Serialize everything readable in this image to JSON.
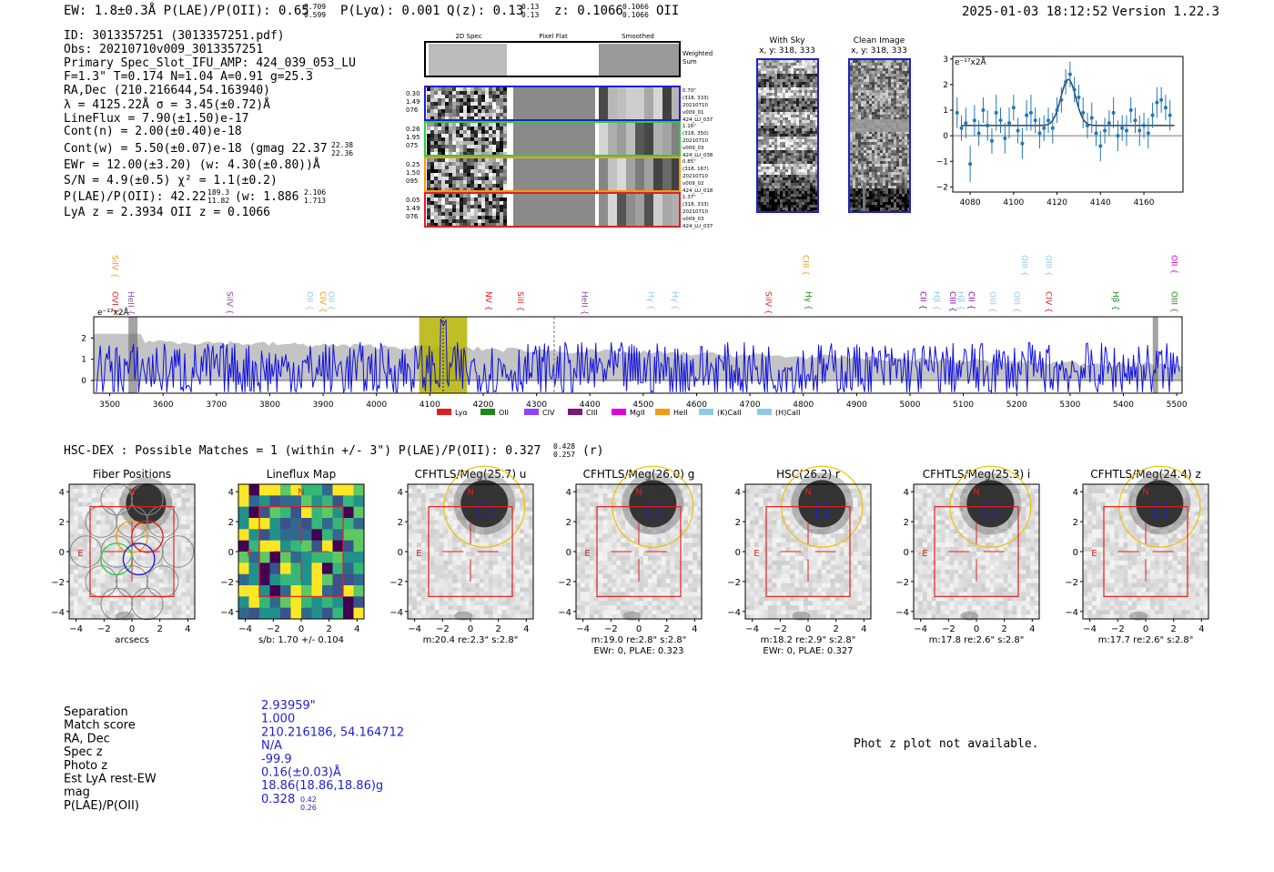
{
  "header": {
    "ew_line": "EW: 1.8±0.3Å  P(LAE)/P(OII): 0.65",
    "pr_hi": "0.709",
    "pr_lo": "0.599",
    "plya": "P(Lyα): 0.001",
    "qz": "Q(z): 0.13",
    "qz_hi": "0.13",
    "qz_lo": "0.13",
    "z": "z: 0.1066",
    "z_hi": "0.1066",
    "z_lo": "0.1066",
    "z_type": "OII",
    "timestamp": "2025-01-03 18:12:52",
    "version": "Version 1.22.3"
  },
  "info": {
    "id": "ID: 3013357251 (3013357251.pdf)",
    "obs": "Obs: 20210710v009_3013357251",
    "primary": "Primary Spec_Slot_IFU_AMP: 424_039_053_LU",
    "fiber": "F=1.3\"  T=0.174  N=1.04  A=0.91  g=25.3",
    "radec": "RA,Dec (210.216644,54.163940)",
    "lambda": "λ = 4125.22Å  σ = 3.45(±0.72)Å",
    "lineflux": "LineFlux = 7.90(±1.50)e-17",
    "contn": "Cont(n) = 2.00(±0.40)e-18",
    "contw": "Cont(w) = 5.50(±0.07)e-18 (gmag 22.37",
    "gmag_hi": "22.38",
    "gmag_lo": "22.36",
    "ewr": "EWr = 12.00(±3.20) (w: 4.30(±0.80))Å",
    "sn": "S/N = 4.9(±0.5)  χ² = 1.1(±0.2)",
    "plae": "P(LAE)/P(OII): 42.22",
    "plae_hi": "189.3",
    "plae_lo": "11.82",
    "plae_w": "(w: 1.886",
    "plae_w_hi": "2.106",
    "plae_w_lo": "1.713",
    "lyaz": "LyA z = 2.3934  OII z = 0.1066"
  },
  "cutout_panel": {
    "col_2d": "2D Spec",
    "col_flat": "Pixel Flat",
    "col_smooth": "Smoothed",
    "weighted": "Weighted",
    "sum": "Sum",
    "rows": [
      {
        "a": "0.30",
        "b": "1.49",
        "c": "076",
        "r1": "0.70\"",
        "r2": "(318, 333)",
        "r3": "20210710",
        "r4": "v009_01",
        "r5": "424_LU_037",
        "color": "#1f1fd0"
      },
      {
        "a": "0.26",
        "b": "1.95",
        "c": "075",
        "r1": "1.16\"",
        "r2": "(318, 350)",
        "r3": "20210710",
        "r4": "v009_03",
        "r5": "424_LU_038",
        "color": "#2ecc40"
      },
      {
        "a": "0.25",
        "b": "1.50",
        "c": "095",
        "r1": "0.85\"",
        "r2": "(318, 167)",
        "r3": "20210710",
        "r4": "v009_02",
        "r5": "424_LU_018",
        "color": "#f39c12"
      },
      {
        "a": "0.05",
        "b": "1.49",
        "c": "076",
        "r1": "1.37\"",
        "r2": "(318, 333)",
        "r3": "20210710",
        "r4": "v009_03",
        "r5": "424_LU_037",
        "color": "#e02020"
      }
    ]
  },
  "sky": {
    "t1": "With Sky",
    "t2": "Clean Image",
    "c1": "x, y: 318, 333",
    "c2": "x, y: 318, 333"
  },
  "zoom_chart": {
    "type": "scatter",
    "units": "e⁻¹⁷x2Å",
    "xlim": [
      4072,
      4178
    ],
    "ylim": [
      -2.2,
      3.1
    ],
    "xticks": [
      "4080",
      "4100",
      "4120",
      "4140",
      "4160"
    ],
    "yticks": [
      "3",
      "2",
      "1",
      "0",
      "−1",
      "−2"
    ],
    "fit": {
      "base": 0.4,
      "amp": 1.8,
      "center": 4125.2,
      "sigma": 3.45
    },
    "points": [
      [
        4074,
        0.9,
        0.6
      ],
      [
        4076,
        0.3,
        0.5
      ],
      [
        4078,
        0.5,
        0.6
      ],
      [
        4080,
        -1.1,
        0.7
      ],
      [
        4082,
        0.6,
        0.6
      ],
      [
        4084,
        0.1,
        0.5
      ],
      [
        4086,
        1.0,
        0.5
      ],
      [
        4088,
        0.4,
        0.6
      ],
      [
        4090,
        -0.2,
        0.5
      ],
      [
        4092,
        0.9,
        0.7
      ],
      [
        4094,
        0.6,
        0.5
      ],
      [
        4096,
        -0.1,
        0.6
      ],
      [
        4098,
        0.5,
        0.6
      ],
      [
        4100,
        1.1,
        0.5
      ],
      [
        4102,
        0.2,
        0.5
      ],
      [
        4104,
        -0.3,
        0.6
      ],
      [
        4106,
        0.8,
        0.6
      ],
      [
        4108,
        0.9,
        0.7
      ],
      [
        4110,
        0.6,
        0.5
      ],
      [
        4112,
        0.1,
        0.6
      ],
      [
        4114,
        0.3,
        0.5
      ],
      [
        4116,
        0.6,
        0.5
      ],
      [
        4118,
        0.3,
        0.6
      ],
      [
        4120,
        1.0,
        0.5
      ],
      [
        4122,
        1.4,
        0.5
      ],
      [
        4124,
        2.1,
        0.5
      ],
      [
        4126,
        2.4,
        0.5
      ],
      [
        4128,
        1.8,
        0.5
      ],
      [
        4130,
        1.5,
        0.5
      ],
      [
        4132,
        0.9,
        0.6
      ],
      [
        4134,
        0.4,
        0.5
      ],
      [
        4136,
        0.7,
        0.6
      ],
      [
        4138,
        0.1,
        0.5
      ],
      [
        4140,
        -0.4,
        0.6
      ],
      [
        4142,
        0.2,
        0.5
      ],
      [
        4144,
        0.5,
        0.5
      ],
      [
        4146,
        0.9,
        0.6
      ],
      [
        4148,
        0.0,
        0.6
      ],
      [
        4150,
        0.3,
        0.5
      ],
      [
        4152,
        0.2,
        0.6
      ],
      [
        4154,
        1.0,
        0.5
      ],
      [
        4156,
        0.6,
        0.5
      ],
      [
        4158,
        0.2,
        0.6
      ],
      [
        4160,
        0.4,
        0.5
      ],
      [
        4162,
        0.1,
        0.6
      ],
      [
        4164,
        0.8,
        0.5
      ],
      [
        4166,
        1.3,
        0.6
      ],
      [
        4168,
        1.4,
        0.5
      ],
      [
        4170,
        1.1,
        0.5
      ],
      [
        4172,
        0.8,
        0.6
      ]
    ]
  },
  "full_spectrum": {
    "type": "line",
    "units": "e⁻¹⁷x2Å",
    "xlim": [
      3470,
      5510
    ],
    "ylim": [
      -0.6,
      3.0
    ],
    "xticks": [
      "3500",
      "3600",
      "3700",
      "3800",
      "3900",
      "4000",
      "4100",
      "4200",
      "4300",
      "4400",
      "4500",
      "4600",
      "4700",
      "4800",
      "4900",
      "5000",
      "5100",
      "5200",
      "5300",
      "5400",
      "5500"
    ],
    "yticks": [
      "2",
      "1",
      "0"
    ],
    "highlight": [
      4080,
      4170
    ],
    "line_labels": [
      {
        "wl": 3505,
        "t": "SiIV",
        "c": "#f39c12",
        "row": 0
      },
      {
        "wl": 3505,
        "t": "OVI",
        "c": "#e02020",
        "row": 1
      },
      {
        "wl": 3535,
        "t": "HeII",
        "c": "#8e44ad",
        "row": 1
      },
      {
        "wl": 3720,
        "t": "SiIV",
        "c": "#8e44ad",
        "row": 1
      },
      {
        "wl": 3870,
        "t": "OII",
        "c": "#8ecae6",
        "row": 1
      },
      {
        "wl": 3895,
        "t": "CIV",
        "c": "#f39c12",
        "row": 1
      },
      {
        "wl": 3910,
        "t": "OII",
        "c": "#8ecae6",
        "row": 1
      },
      {
        "wl": 4205,
        "t": "NV",
        "c": "#e02020",
        "row": 1
      },
      {
        "wl": 4265,
        "t": "SiII",
        "c": "#e02020",
        "row": 1
      },
      {
        "wl": 4385,
        "t": "HeII",
        "c": "#8e44ad",
        "row": 1
      },
      {
        "wl": 4510,
        "t": "Hγ",
        "c": "#8ecae6",
        "row": 1
      },
      {
        "wl": 4555,
        "t": "Hγ",
        "c": "#8ecae6",
        "row": 1
      },
      {
        "wl": 4730,
        "t": "SiIV",
        "c": "#e02020",
        "row": 1
      },
      {
        "wl": 4800,
        "t": "CIII",
        "c": "#f39c12",
        "row": 0
      },
      {
        "wl": 4805,
        "t": "Hγ",
        "c": "#1a8a1a",
        "row": 1
      },
      {
        "wl": 5020,
        "t": "CII",
        "c": "#8e00b0",
        "row": 1
      },
      {
        "wl": 5045,
        "t": "Hβ",
        "c": "#8ecae6",
        "row": 1
      },
      {
        "wl": 5075,
        "t": "CIII",
        "c": "#8e00b0",
        "row": 1
      },
      {
        "wl": 5090,
        "t": "Hβ",
        "c": "#8ecae6",
        "row": 1
      },
      {
        "wl": 5110,
        "t": "CII",
        "c": "#8e00b0",
        "row": 1
      },
      {
        "wl": 5150,
        "t": "OIII",
        "c": "#8ecae6",
        "row": 1
      },
      {
        "wl": 5195,
        "t": "OIII",
        "c": "#8ecae6",
        "row": 1
      },
      {
        "wl": 5210,
        "t": "OIII",
        "c": "#8ecae6",
        "row": 0
      },
      {
        "wl": 5255,
        "t": "OIII",
        "c": "#8ecae6",
        "row": 0
      },
      {
        "wl": 5255,
        "t": "CIV",
        "c": "#e02020",
        "row": 1
      },
      {
        "wl": 5380,
        "t": "Hβ",
        "c": "#1a8a1a",
        "row": 1
      },
      {
        "wl": 5490,
        "t": "OII",
        "c": "#e000e0",
        "row": 0
      },
      {
        "wl": 5490,
        "t": "OIII",
        "c": "#1a8a1a",
        "row": 1
      }
    ],
    "legend": [
      {
        "t": "Lyα",
        "c": "#e02020"
      },
      {
        "t": "OII",
        "c": "#1a8a1a"
      },
      {
        "t": "CIV",
        "c": "#8e44ff"
      },
      {
        "t": "CIII",
        "c": "#7a1a7a"
      },
      {
        "t": "MgII",
        "c": "#e000e0"
      },
      {
        "t": "HeII",
        "c": "#f39c12"
      },
      {
        "t": "(K)CaII",
        "c": "#8ecae6"
      },
      {
        "t": "(H)CaII",
        "c": "#8ecae6"
      }
    ]
  },
  "hsc": {
    "title_line": "HSC-DEX : Possible Matches = 1 (within +/- 3\")  P(LAE)/P(OII): 0.327",
    "hi": "0.428",
    "lo": "0.257",
    "band": "(r)"
  },
  "cutouts": [
    {
      "title": "Fiber Positions",
      "cap1": "arcsecs",
      "cap2": ""
    },
    {
      "title": "Lineflux Map",
      "cap1": "s/b: 1.70 +/- 0.104",
      "cap2": ""
    },
    {
      "title": "CFHTLS/Meg(25.7) u",
      "cap1": "m:20.4  re:2.3\"  s:2.8\"",
      "cap2": ""
    },
    {
      "title": "CFHTLS/Meg(26.0) g",
      "cap1": "m:19.0  re:2.8\"  s:2.8\"",
      "cap2": "EWr: 0, PLAE: 0.323"
    },
    {
      "title": "HSC(26.2) r",
      "cap1": "m:18.2  re:2.9\"  s:2.8\"",
      "cap2": "EWr: 0, PLAE: 0.327"
    },
    {
      "title": "CFHTLS/Meg(25.3) i",
      "cap1": "m:17.8  re:2.6\"  s:2.8\"",
      "cap2": ""
    },
    {
      "title": "CFHTLS/Meg(24.4) z",
      "cap1": "m:17.7  re:2.6\"  s:2.8\"",
      "cap2": ""
    }
  ],
  "cutout_ticks": {
    "x": [
      "−4",
      "−2",
      "0",
      "2",
      "4"
    ],
    "y": [
      "4",
      "2",
      "0",
      "−2",
      "−4"
    ],
    "n": "N",
    "e": "E"
  },
  "match": {
    "labels": [
      "Separation",
      "Match score",
      "RA, Dec",
      "Spec z",
      "Photo z",
      "Est LyA rest-EW",
      "mag",
      "P(LAE)/P(OII)"
    ],
    "values": [
      "2.93959\"",
      "1.000",
      "210.216186, 54.164712",
      "N/A",
      "-99.9",
      "0.16(±0.03)Å",
      "18.86(18.86,18.86)g",
      "0.328"
    ],
    "last_hi": "0.42",
    "last_lo": "0.26"
  },
  "photz": "Phot z plot not available."
}
